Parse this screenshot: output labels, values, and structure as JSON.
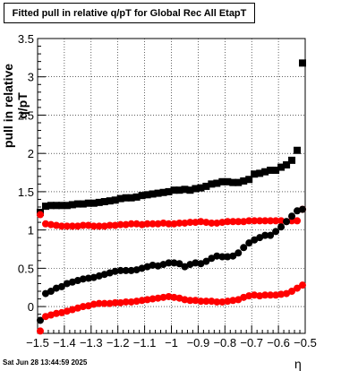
{
  "header": {
    "title": "Fitted pull in relative q/pT for Global Rec All EtapT"
  },
  "footer": {
    "timestamp": "Sat Jun 28 13:44:59 2025"
  },
  "chart_data": {
    "type": "scatter",
    "title": "Fitted pull in relative q/pT for Global Rec All EtapT",
    "xlabel": "η",
    "ylabel": "pull in relative q/pT",
    "xlim": [
      -1.5,
      -0.5
    ],
    "ylim": [
      -0.35,
      3.5
    ],
    "grid": true,
    "x_ticks": [
      "−1.5",
      "−1.4",
      "−1.3",
      "−1.2",
      "−1.1",
      "−1",
      "−0.9",
      "−0.8",
      "−0.7",
      "−0.6",
      "−0.5"
    ],
    "y_ticks": [
      "0",
      "0.5",
      "1",
      "1.5",
      "2",
      "2.5",
      "3",
      "3.5"
    ],
    "x": [
      -1.49,
      -1.47,
      -1.45,
      -1.43,
      -1.41,
      -1.39,
      -1.37,
      -1.35,
      -1.33,
      -1.31,
      -1.29,
      -1.27,
      -1.25,
      -1.23,
      -1.21,
      -1.19,
      -1.17,
      -1.15,
      -1.13,
      -1.11,
      -1.09,
      -1.07,
      -1.05,
      -1.03,
      -1.01,
      -0.99,
      -0.97,
      -0.95,
      -0.93,
      -0.91,
      -0.89,
      -0.87,
      -0.85,
      -0.83,
      -0.81,
      -0.79,
      -0.77,
      -0.75,
      -0.73,
      -0.71,
      -0.69,
      -0.67,
      -0.65,
      -0.63,
      -0.61,
      -0.59,
      -0.57,
      -0.55,
      -0.53,
      -0.51
    ],
    "series": [
      {
        "color": "#000000",
        "marker": "square",
        "values": [
          1.23,
          1.31,
          1.32,
          1.32,
          1.32,
          1.32,
          1.33,
          1.34,
          1.34,
          1.35,
          1.35,
          1.36,
          1.37,
          1.38,
          1.39,
          1.41,
          1.42,
          1.42,
          1.43,
          1.45,
          1.46,
          1.47,
          1.48,
          1.49,
          1.5,
          1.52,
          1.52,
          1.53,
          1.52,
          1.54,
          1.55,
          1.57,
          1.6,
          1.61,
          1.63,
          1.63,
          1.62,
          1.62,
          1.64,
          1.66,
          1.73,
          1.74,
          1.76,
          1.78,
          1.78,
          1.82,
          1.85,
          1.91,
          2.04,
          3.18
        ]
      },
      {
        "color": "#ff0000",
        "marker": "circle",
        "values": [
          1.2,
          1.08,
          1.07,
          1.06,
          1.05,
          1.05,
          1.05,
          1.05,
          1.06,
          1.06,
          1.05,
          1.05,
          1.05,
          1.06,
          1.06,
          1.07,
          1.07,
          1.08,
          1.08,
          1.07,
          1.08,
          1.08,
          1.08,
          1.09,
          1.08,
          1.08,
          1.09,
          1.09,
          1.1,
          1.1,
          1.11,
          1.1,
          1.09,
          1.09,
          1.1,
          1.11,
          1.11,
          1.11,
          1.11,
          1.12,
          1.12,
          1.12,
          1.12,
          1.12,
          1.12,
          1.12,
          1.11,
          1.12,
          1.12,
          1.27
        ]
      },
      {
        "color": "#000000",
        "marker": "circle",
        "values": [
          -0.18,
          0.17,
          0.2,
          0.24,
          0.26,
          0.3,
          0.32,
          0.34,
          0.36,
          0.37,
          0.38,
          0.4,
          0.42,
          0.44,
          0.46,
          0.47,
          0.47,
          0.47,
          0.48,
          0.5,
          0.52,
          0.54,
          0.53,
          0.55,
          0.57,
          0.57,
          0.56,
          0.52,
          0.55,
          0.57,
          0.56,
          0.59,
          0.63,
          0.66,
          0.65,
          0.65,
          0.66,
          0.7,
          0.77,
          0.83,
          0.87,
          0.9,
          0.93,
          0.93,
          0.98,
          1.04,
          1.11,
          1.18,
          1.25,
          1.27
        ]
      },
      {
        "color": "#ff0000",
        "marker": "circle",
        "values": [
          -0.32,
          -0.13,
          -0.11,
          -0.09,
          -0.08,
          -0.06,
          -0.04,
          -0.02,
          0.0,
          0.01,
          0.03,
          0.04,
          0.04,
          0.04,
          0.05,
          0.05,
          0.06,
          0.06,
          0.07,
          0.08,
          0.09,
          0.1,
          0.11,
          0.12,
          0.13,
          0.12,
          0.11,
          0.09,
          0.08,
          0.08,
          0.07,
          0.07,
          0.07,
          0.06,
          0.06,
          0.07,
          0.08,
          0.09,
          0.12,
          0.14,
          0.15,
          0.14,
          0.15,
          0.15,
          0.15,
          0.16,
          0.17,
          0.2,
          0.24,
          0.28
        ]
      }
    ]
  }
}
